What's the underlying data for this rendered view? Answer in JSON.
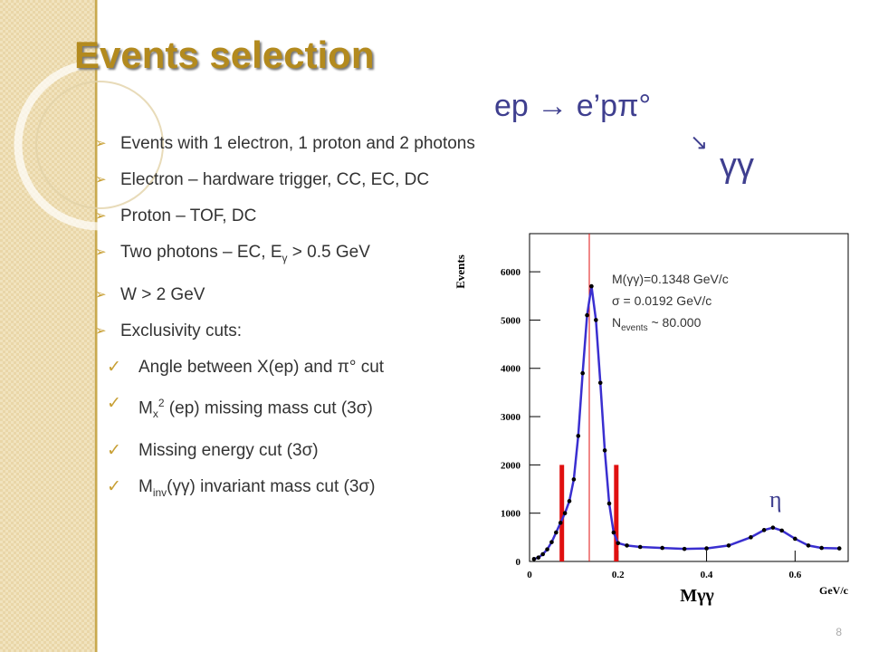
{
  "title": "Events selection",
  "reaction": {
    "line1": "ep → e’pπ°",
    "arrow": "↘",
    "line2": "γγ"
  },
  "bullets": [
    {
      "level": 1,
      "parts": [
        {
          "text": "Events with 1 electron, 1 proton and 2 photons"
        }
      ]
    },
    {
      "level": 1,
      "parts": [
        {
          "text": "Electron – hardware trigger, CC, EC, DC"
        }
      ]
    },
    {
      "level": 1,
      "parts": [
        {
          "text": "Proton – TOF,  DC"
        }
      ]
    },
    {
      "level": 1,
      "parts": [
        {
          "text": "Two photons – EC, E"
        },
        {
          "text": "γ",
          "sub": true
        },
        {
          "text": " > 0.5 GeV"
        }
      ]
    },
    {
      "level": 1,
      "parts": [
        {
          "text": "W > 2 GeV"
        }
      ]
    },
    {
      "level": 1,
      "parts": [
        {
          "text": "Exclusivity cuts:"
        }
      ]
    },
    {
      "level": 2,
      "parts": [
        {
          "text": "Angle between X(ep) and π° cut"
        }
      ]
    },
    {
      "level": 2,
      "parts": [
        {
          "text": "M"
        },
        {
          "text": "x",
          "sub": true
        },
        {
          "text": "2",
          "sup": true
        },
        {
          "text": " (ep) missing mass cut (3σ)"
        }
      ]
    },
    {
      "level": 2,
      "parts": [
        {
          "text": "Missing energy cut (3σ)"
        }
      ]
    },
    {
      "level": 2,
      "parts": [
        {
          "text": "M"
        },
        {
          "text": "inv",
          "sub": true
        },
        {
          "text": "(γγ)  invariant mass cut (3σ)"
        }
      ]
    }
  ],
  "plot": {
    "type": "scatter",
    "ylabel": "Events",
    "xlabel": "Mγγ",
    "xunit": "GeV/c",
    "xlim": [
      0,
      0.72
    ],
    "ylim": [
      0,
      6790
    ],
    "xticks": [
      0,
      0.2,
      0.4,
      0.6
    ],
    "yticks": [
      0,
      1000,
      2000,
      3000,
      4000,
      5000,
      6000
    ],
    "line_color": "#3a2fd0",
    "point_color": "#000000",
    "cut_color": "#e01010",
    "peak_line": 0.135,
    "cut_lines": [
      {
        "x": 0.073,
        "height": 2000
      },
      {
        "x": 0.196,
        "height": 2000
      }
    ],
    "x": [
      0.01,
      0.02,
      0.03,
      0.04,
      0.05,
      0.06,
      0.07,
      0.08,
      0.09,
      0.1,
      0.11,
      0.12,
      0.13,
      0.14,
      0.15,
      0.16,
      0.17,
      0.18,
      0.19,
      0.2,
      0.22,
      0.25,
      0.3,
      0.35,
      0.4,
      0.45,
      0.5,
      0.53,
      0.55,
      0.57,
      0.6,
      0.63,
      0.66,
      0.7
    ],
    "values": [
      50,
      80,
      150,
      250,
      400,
      600,
      800,
      1000,
      1250,
      1700,
      2600,
      3900,
      5100,
      5700,
      5000,
      3700,
      2300,
      1200,
      600,
      380,
      330,
      300,
      280,
      260,
      270,
      330,
      500,
      650,
      700,
      640,
      470,
      330,
      280,
      270
    ],
    "annotations": [
      [
        {
          "text": "M(γγ)=0.1348  GeV/c"
        }
      ],
      [
        {
          "text": "σ = 0.0192 GeV/c"
        }
      ],
      [
        {
          "text": "N"
        },
        {
          "text": "events",
          "sub": true
        },
        {
          "text": " ~ 80.000"
        }
      ]
    ],
    "peak_label": "η"
  },
  "page_number": "8"
}
